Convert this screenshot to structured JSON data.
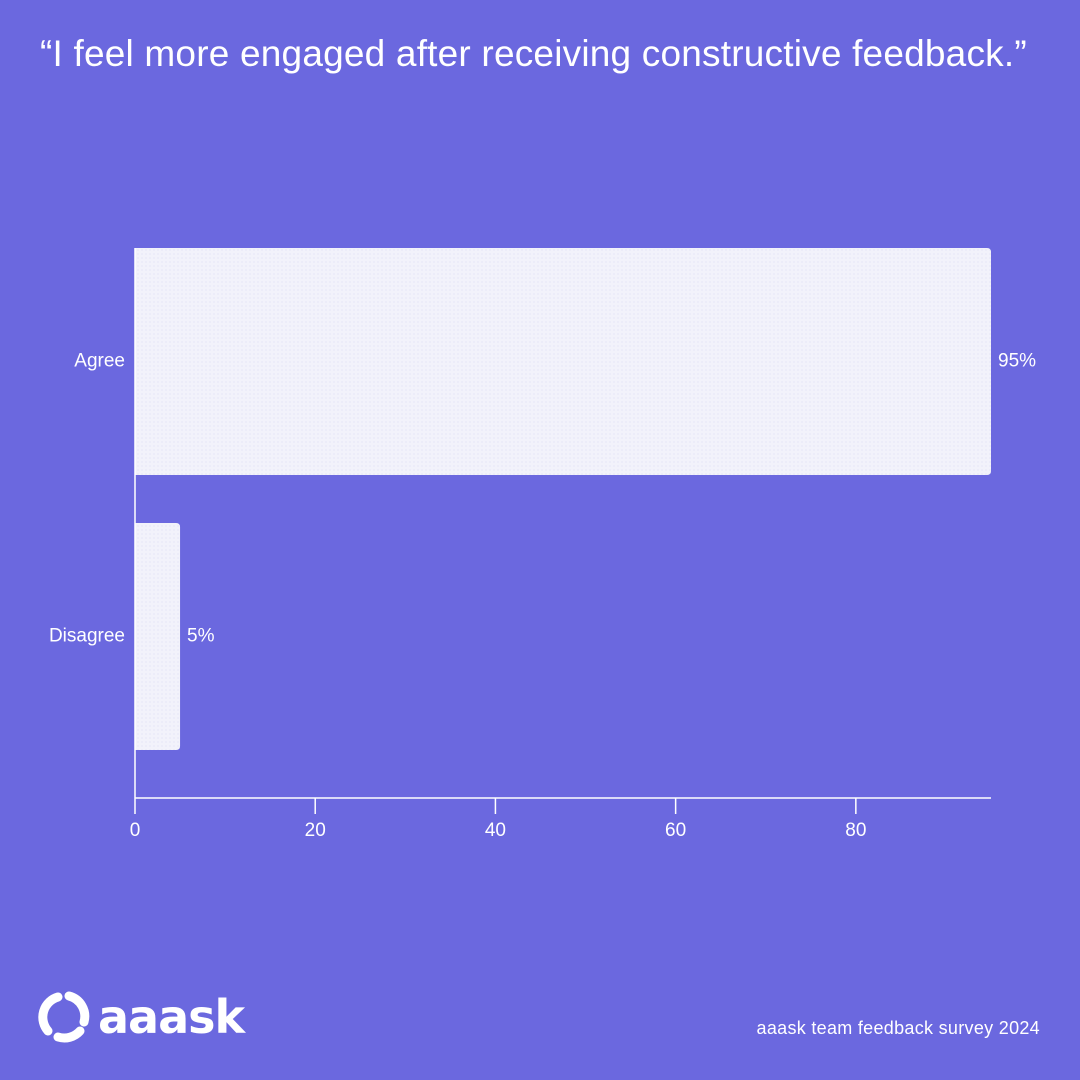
{
  "title": "“I feel more engaged after receiving constructive feedback.”",
  "footer": {
    "brand_name": "aaask",
    "caption": "aaask team feedback survey 2024"
  },
  "colors": {
    "background": "#6b68df",
    "bar_fill": "#f2f2fb",
    "text": "#ffffff"
  },
  "chart_data": {
    "type": "bar",
    "orientation": "horizontal",
    "categories": [
      "Agree",
      "Disagree"
    ],
    "values": [
      95,
      5
    ],
    "data_labels": [
      "95%",
      "5%"
    ],
    "x_ticks": [
      0,
      20,
      40,
      60,
      80
    ],
    "xlim": [
      0,
      95
    ],
    "grid": false,
    "legend": "none"
  }
}
